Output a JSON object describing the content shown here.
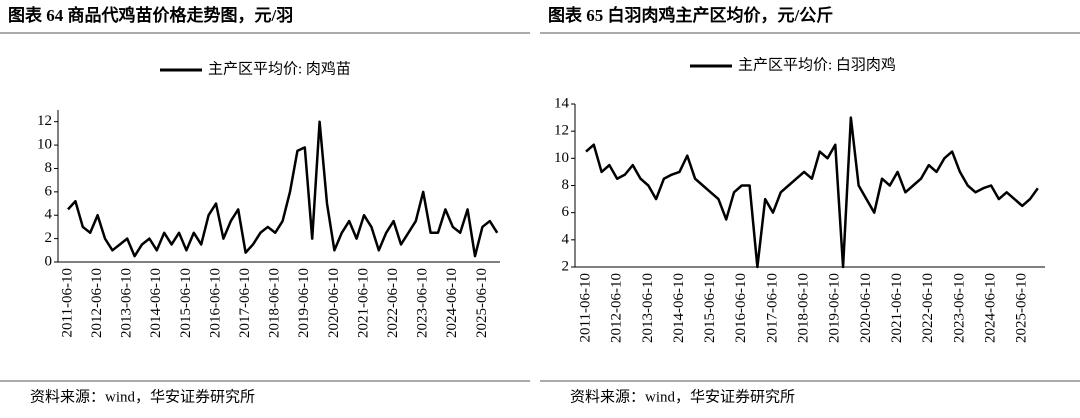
{
  "chart_data": [
    {
      "type": "line",
      "title": "图表 64 商品代鸡苗价格走势图，元/羽",
      "source": "资料来源：wind，华安证券研究所",
      "categories": [
        "2011-06-10",
        null,
        null,
        null,
        "2012-06-10",
        null,
        null,
        null,
        "2013-06-10",
        null,
        null,
        null,
        "2014-06-10",
        null,
        null,
        null,
        "2015-06-10",
        null,
        null,
        null,
        "2016-06-10",
        null,
        null,
        null,
        "2017-06-10",
        null,
        null,
        null,
        "2018-06-10",
        null,
        null,
        null,
        "2019-06-10",
        null,
        null,
        null,
        "2020-06-10",
        null,
        null,
        null,
        "2021-06-10",
        null,
        null,
        null,
        "2022-06-10",
        null,
        null,
        null,
        "2023-06-10",
        null,
        null,
        null,
        "2024-06-10",
        null,
        null,
        null,
        "2025-06-10",
        null,
        null
      ],
      "series": [
        {
          "name": "主产区平均价: 肉鸡苗",
          "color": "#000000",
          "values": [
            4.5,
            5.2,
            3.0,
            2.5,
            4.0,
            2.0,
            1.0,
            1.5,
            2.0,
            0.5,
            1.5,
            2.0,
            1.0,
            2.5,
            1.5,
            2.5,
            1.0,
            2.5,
            1.5,
            4.0,
            5.0,
            2.0,
            3.5,
            4.5,
            0.8,
            1.5,
            2.5,
            3.0,
            2.5,
            3.5,
            6.0,
            9.5,
            9.8,
            2.0,
            12.0,
            5.0,
            1.0,
            2.5,
            3.5,
            2.0,
            4.0,
            3.0,
            1.0,
            2.5,
            3.5,
            1.5,
            2.5,
            3.5,
            6.0,
            2.5,
            2.5,
            4.5,
            3.0,
            2.5,
            4.5,
            0.5,
            3.0,
            3.5,
            2.5
          ]
        }
      ],
      "ylim": [
        0,
        13
      ],
      "yticks": [
        0,
        2,
        4,
        6,
        8,
        10,
        12
      ],
      "legend": "top"
    },
    {
      "type": "line",
      "title": "图表 65 白羽肉鸡主产区均价，元/公斤",
      "source": "资料来源：wind，华安证券研究所",
      "categories": [
        "2011-06-10",
        null,
        null,
        null,
        "2012-06-10",
        null,
        null,
        null,
        "2013-06-10",
        null,
        null,
        null,
        "2014-06-10",
        null,
        null,
        null,
        "2015-06-10",
        null,
        null,
        null,
        "2016-06-10",
        null,
        null,
        null,
        "2017-06-10",
        null,
        null,
        null,
        "2018-06-10",
        null,
        null,
        null,
        "2019-06-10",
        null,
        null,
        null,
        "2020-06-10",
        null,
        null,
        null,
        "2021-06-10",
        null,
        null,
        null,
        "2022-06-10",
        null,
        null,
        null,
        "2023-06-10",
        null,
        null,
        null,
        "2024-06-10",
        null,
        null,
        null,
        "2025-06-10",
        null,
        null
      ],
      "series": [
        {
          "name": "主产区平均价: 白羽肉鸡",
          "color": "#000000",
          "values": [
            10.5,
            11.0,
            9.0,
            9.5,
            8.5,
            8.8,
            9.5,
            8.5,
            8.0,
            7.0,
            8.5,
            8.8,
            9.0,
            10.2,
            8.5,
            8.0,
            7.5,
            7.0,
            5.5,
            7.5,
            8.0,
            8.0,
            2.0,
            7.0,
            6.0,
            7.5,
            8.0,
            8.5,
            9.0,
            8.5,
            10.5,
            10.0,
            11.0,
            2.0,
            13.0,
            8.0,
            7.0,
            6.0,
            8.5,
            8.0,
            9.0,
            7.5,
            8.0,
            8.5,
            9.5,
            9.0,
            10.0,
            10.5,
            9.0,
            8.0,
            7.5,
            7.8,
            8.0,
            7.0,
            7.5,
            7.0,
            6.5,
            7.0,
            7.8
          ]
        }
      ],
      "ylim": [
        2,
        14
      ],
      "yticks": [
        2,
        4,
        6,
        8,
        10,
        12,
        14
      ],
      "legend": "top"
    }
  ]
}
